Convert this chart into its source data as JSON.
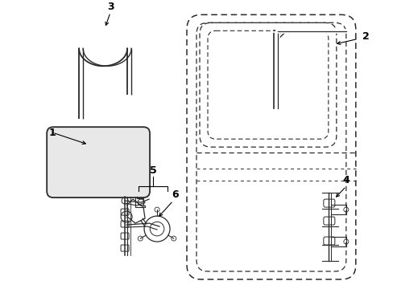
{
  "bg_color": "#ffffff",
  "line_color": "#2a2a2a",
  "dashed_color": "#2a2a2a",
  "label_color": "#000000",
  "figsize": [
    4.89,
    3.6
  ],
  "dpi": 100,
  "lw_main": 1.0,
  "lw_thin": 0.7,
  "lw_thick": 1.3
}
